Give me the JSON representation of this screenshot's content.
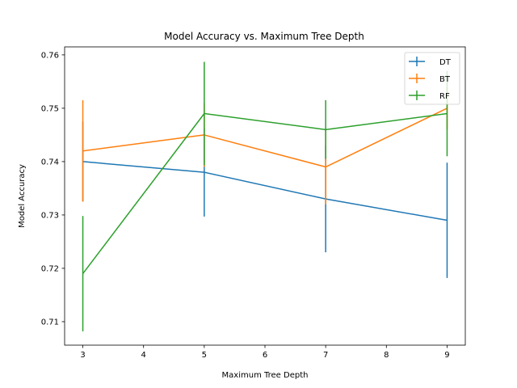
{
  "chart_data": {
    "type": "line",
    "title": "Model Accuracy vs. Maximum Tree Depth",
    "xlabel": "Maximum Tree Depth",
    "ylabel": "Model Accuracy",
    "xlim": [
      2.7,
      9.3
    ],
    "ylim": [
      0.7056,
      0.7615
    ],
    "xticks": [
      3,
      4,
      5,
      6,
      7,
      8,
      9
    ],
    "yticks": [
      0.71,
      0.72,
      0.73,
      0.74,
      0.75,
      0.76
    ],
    "ytick_labels": [
      "0.71",
      "0.72",
      "0.73",
      "0.74",
      "0.75",
      "0.76"
    ],
    "grid": false,
    "legend_position": "upper-right",
    "x": [
      3,
      5,
      7,
      9
    ],
    "series": [
      {
        "name": "DT",
        "color": "#1f77b4",
        "values": [
          0.74,
          0.738,
          0.733,
          0.729
        ],
        "errors": [
          0.0075,
          0.0083,
          0.01,
          0.0108
        ]
      },
      {
        "name": "BT",
        "color": "#ff7f0e",
        "values": [
          0.742,
          0.745,
          0.739,
          0.75
        ],
        "errors": [
          0.0095,
          0.006,
          0.007,
          0.004
        ]
      },
      {
        "name": "RF",
        "color": "#2ca02c",
        "values": [
          0.719,
          0.749,
          0.746,
          0.749
        ],
        "errors": [
          0.0108,
          0.0097,
          0.0055,
          0.008
        ]
      }
    ]
  }
}
